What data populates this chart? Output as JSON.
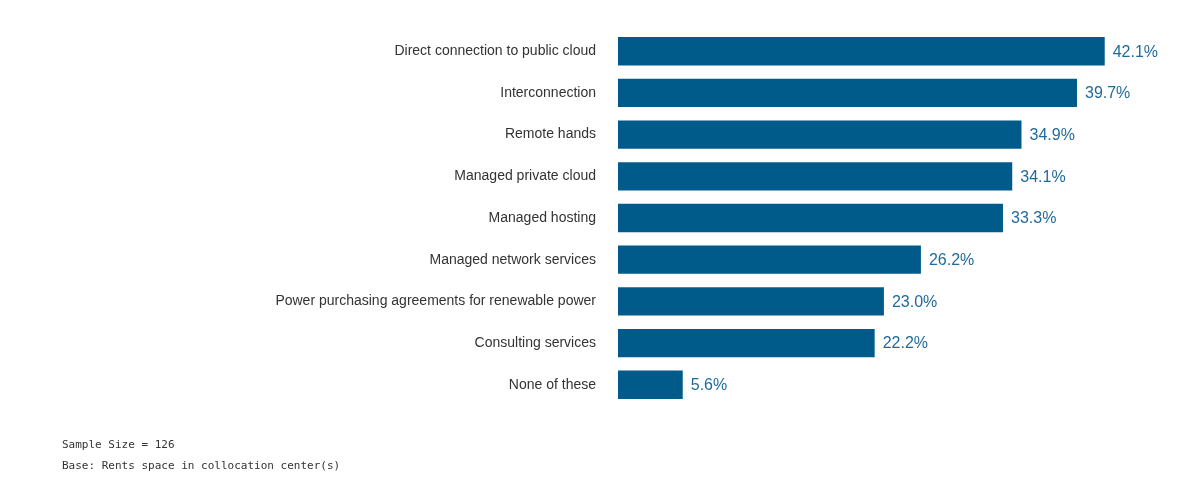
{
  "chart_data": {
    "type": "bar",
    "orientation": "horizontal",
    "categories": [
      "Direct connection to public cloud",
      "Interconnection",
      "Remote hands",
      "Managed private cloud",
      "Managed hosting",
      "Managed network services",
      "Power purchasing agreements for renewable power",
      "Consulting services",
      "None of these"
    ],
    "values": [
      42.1,
      39.7,
      34.9,
      34.1,
      33.3,
      26.2,
      23.0,
      22.2,
      5.6
    ],
    "value_labels": [
      "42.1%",
      "39.7%",
      "34.9%",
      "34.1%",
      "33.3%",
      "26.2%",
      "23.0%",
      "22.2%",
      "5.6%"
    ],
    "color": "#005b8a",
    "annotations": [
      "Sample Size = 126",
      "Base: Rents space in collocation center(s)"
    ]
  }
}
